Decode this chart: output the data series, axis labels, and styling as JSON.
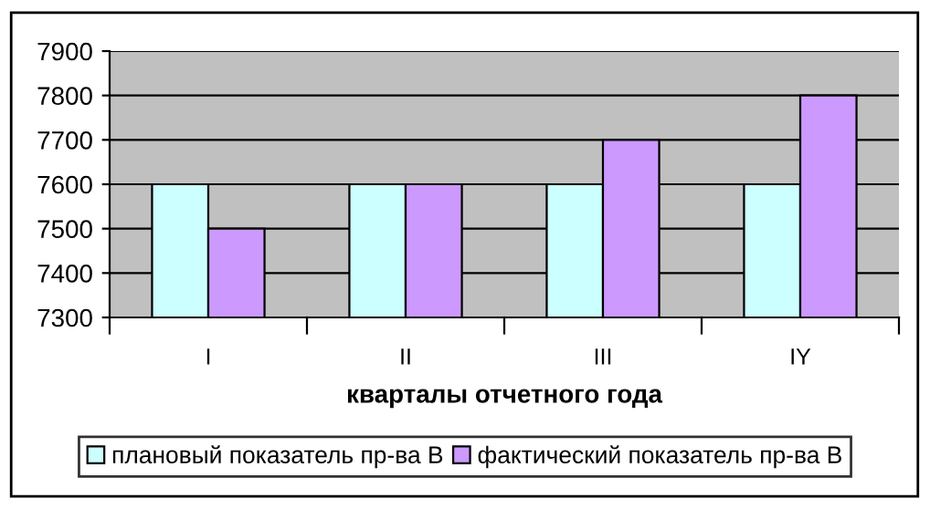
{
  "chart_data": {
    "type": "bar",
    "xlabel": "кварталы отчетного года",
    "categories": [
      "I",
      "II",
      "III",
      "IY"
    ],
    "series": [
      {
        "name": "плановый показатель пр-ва В",
        "color": "#ccffff",
        "values": [
          7600,
          7600,
          7600,
          7600
        ]
      },
      {
        "name": "фактический показатель пр-ва В",
        "color": "#cc99ff",
        "values": [
          7500,
          7600,
          7700,
          7800
        ]
      }
    ],
    "ylim": [
      7300,
      7900
    ],
    "yticks": [
      7300,
      7400,
      7500,
      7600,
      7700,
      7800,
      7900
    ],
    "grid": "y",
    "legend": "bottom"
  }
}
